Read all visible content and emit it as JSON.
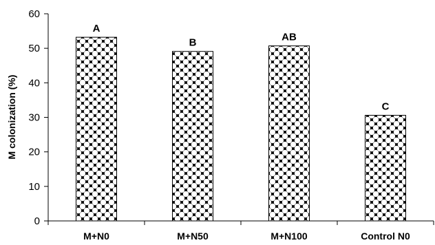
{
  "chart_data": {
    "type": "bar",
    "title": "",
    "xlabel": "",
    "ylabel": "M colonization (%)",
    "ylim": [
      0,
      60
    ],
    "yticks": [
      0,
      10,
      20,
      30,
      40,
      50,
      60
    ],
    "grid": false,
    "legend": "none",
    "categories": [
      "M+N0",
      "M+N50",
      "M+N100",
      "Control N0"
    ],
    "values": [
      53.2,
      49.1,
      50.7,
      30.6
    ],
    "significance_labels": [
      "A",
      "B",
      "AB",
      "C"
    ],
    "bar_pattern": "black-white-diamond-checker",
    "colors": {
      "axis": "#000000",
      "bar_fill": "#000000",
      "bar_pattern_light": "#ffffff"
    }
  }
}
